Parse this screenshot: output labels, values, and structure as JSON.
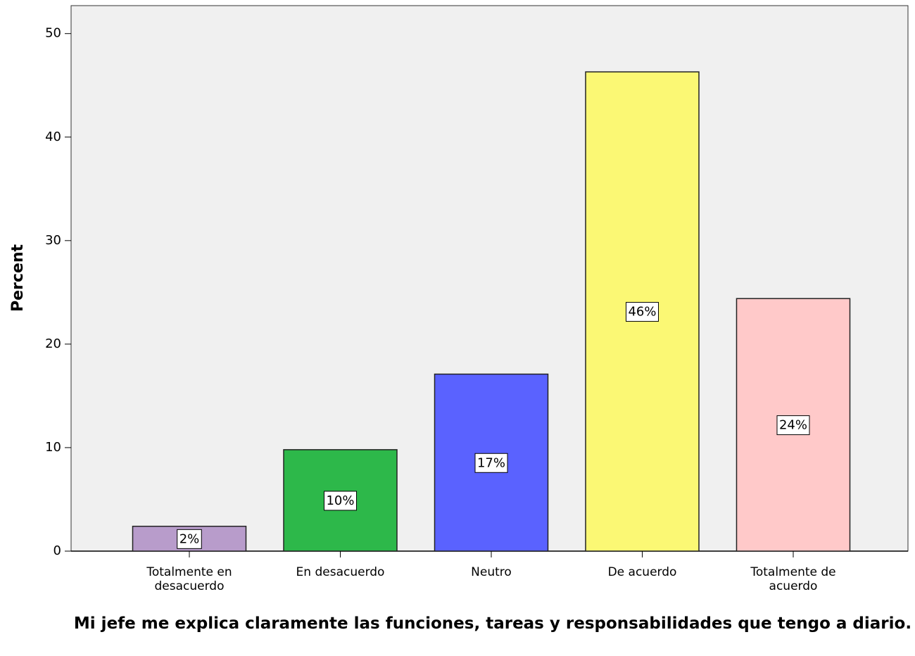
{
  "chart_data": {
    "type": "bar",
    "x_label": "Mi jefe me explica claramente las funciones, tareas y responsabilidades que tengo a diario.",
    "y_label": "Percent",
    "categories": [
      "Totalmente en desacuerdo",
      "En desacuerdo",
      "Neutro",
      "De acuerdo",
      "Totalmente de acuerdo"
    ],
    "values": [
      2.4,
      9.8,
      17.1,
      46.3,
      24.4
    ],
    "value_labels": [
      "2%",
      "10%",
      "17%",
      "46%",
      "24%"
    ],
    "colors": [
      "#b89ccb",
      "#2db84a",
      "#5a62ff",
      "#fbf874",
      "#ffc9c9"
    ],
    "ylim": [
      0,
      52.7
    ],
    "yticks": [
      0,
      10,
      20,
      30,
      40,
      50
    ]
  }
}
